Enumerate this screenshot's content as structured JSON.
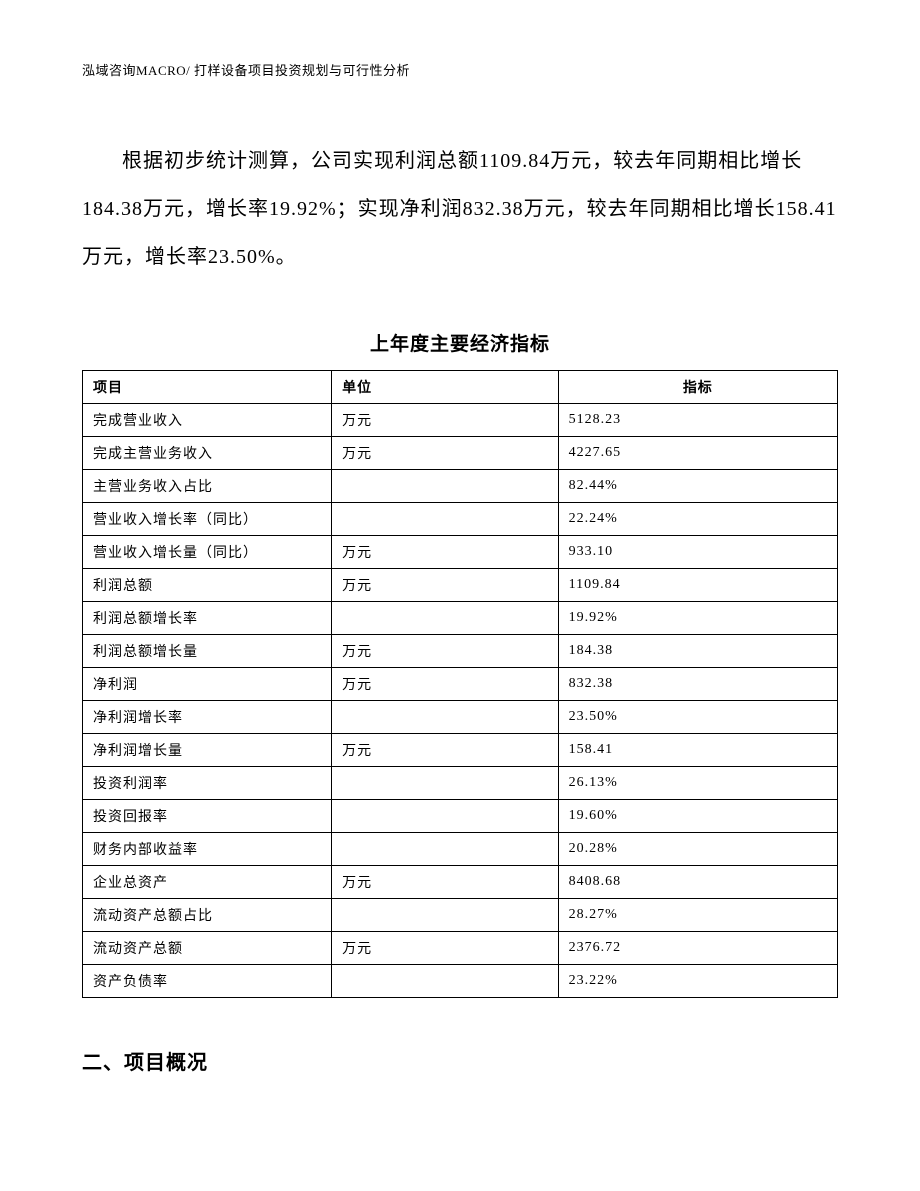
{
  "header": "泓域咨询MACRO/ 打样设备项目投资规划与可行性分析",
  "paragraph": "根据初步统计测算，公司实现利润总额1109.84万元，较去年同期相比增长184.38万元，增长率19.92%；实现净利润832.38万元，较去年同期相比增长158.41万元，增长率23.50%。",
  "table": {
    "title": "上年度主要经济指标",
    "columns": [
      "项目",
      "单位",
      "指标"
    ],
    "rows": [
      [
        "完成营业收入",
        "万元",
        "5128.23"
      ],
      [
        "完成主营业务收入",
        "万元",
        "4227.65"
      ],
      [
        "主营业务收入占比",
        "",
        "82.44%"
      ],
      [
        "营业收入增长率（同比）",
        "",
        "22.24%"
      ],
      [
        "营业收入增长量（同比）",
        "万元",
        "933.10"
      ],
      [
        "利润总额",
        "万元",
        "1109.84"
      ],
      [
        "利润总额增长率",
        "",
        "19.92%"
      ],
      [
        "利润总额增长量",
        "万元",
        "184.38"
      ],
      [
        "净利润",
        "万元",
        "832.38"
      ],
      [
        "净利润增长率",
        "",
        "23.50%"
      ],
      [
        "净利润增长量",
        "万元",
        "158.41"
      ],
      [
        "投资利润率",
        "",
        "26.13%"
      ],
      [
        "投资回报率",
        "",
        "19.60%"
      ],
      [
        "财务内部收益率",
        "",
        "20.28%"
      ],
      [
        "企业总资产",
        "万元",
        "8408.68"
      ],
      [
        "流动资产总额占比",
        "",
        "28.27%"
      ],
      [
        "流动资产总额",
        "万元",
        "2376.72"
      ],
      [
        "资产负债率",
        "",
        "23.22%"
      ]
    ]
  },
  "section_heading": "二、项目概况"
}
